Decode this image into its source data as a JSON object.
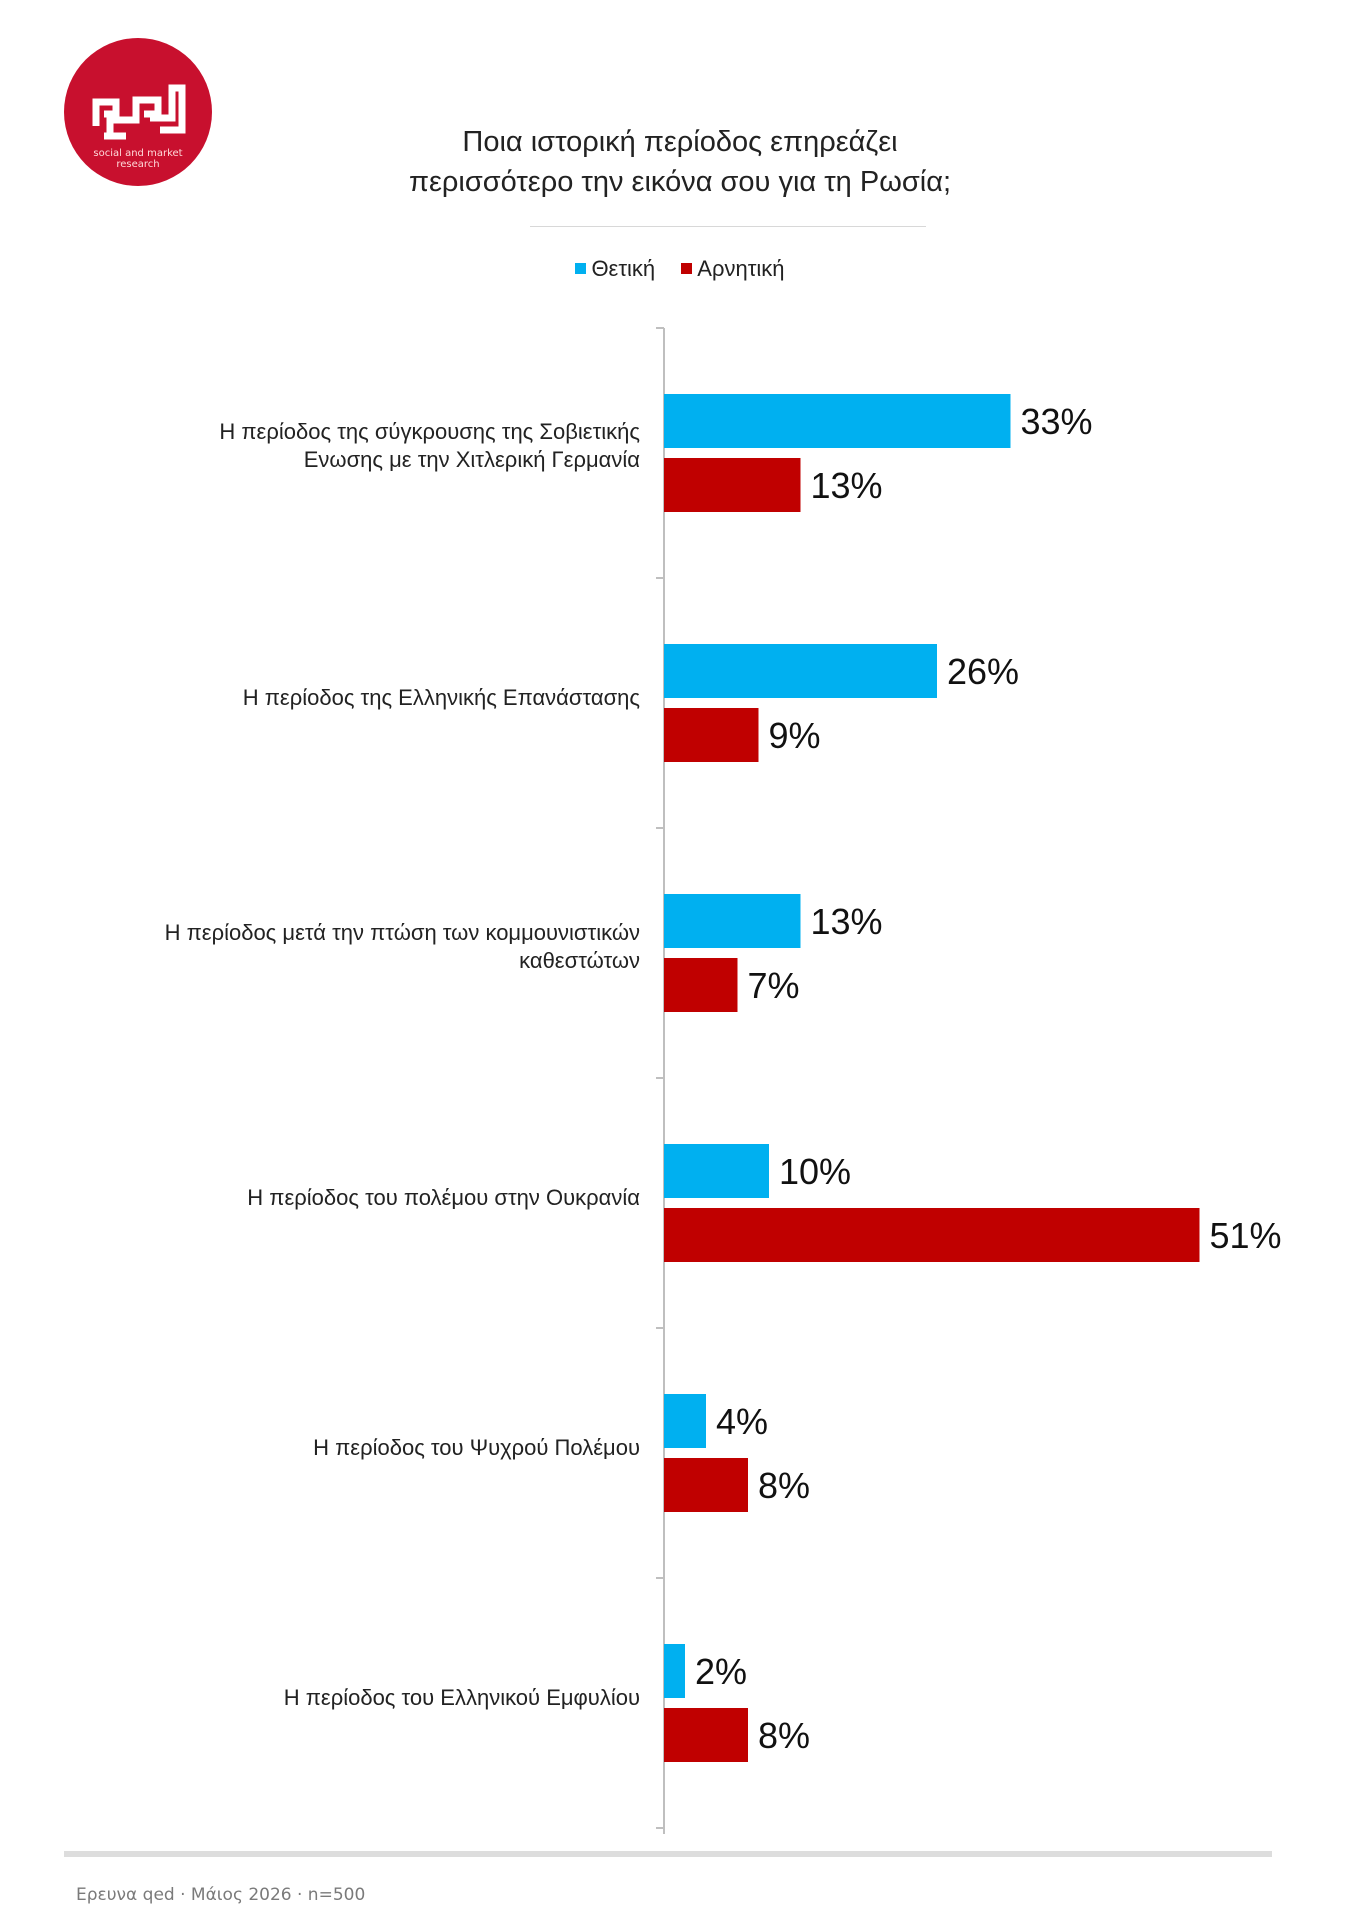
{
  "logo": {
    "line1": "social and market",
    "line2": "research"
  },
  "chart_data": {
    "type": "bar",
    "orientation": "horizontal",
    "title": "Ποια ιστορική περίοδος επηρεάζει περισσότερο την εικόνα σου για τη Ρωσία;",
    "title_lines": [
      "Ποια ιστορική περίοδος επηρεάζει",
      "περισσότερο την εικόνα σου για τη Ρωσία;"
    ],
    "legend_position": "top",
    "grid": false,
    "xlim": [
      0,
      51
    ],
    "categories": [
      [
        "Η περίοδος της σύγκρουσης της Σοβιετικής",
        "Ενωσης με την Χιτλερική Γερμανία"
      ],
      [
        "Η περίοδος της Ελληνικής Επανάστασης"
      ],
      [
        "Η περίοδος μετά την πτώση των κομμουνιστικών",
        "καθεστώτων"
      ],
      [
        "Η περίοδος του πολέμου στην Ουκρανία"
      ],
      [
        "Η περίοδος του Ψυχρού Πολέμου"
      ],
      [
        "Η περίοδος του Ελληνικού Εμφυλίου"
      ]
    ],
    "series": [
      {
        "name": "Θετική",
        "color": "#00b0f0",
        "values": [
          33,
          26,
          13,
          10,
          4,
          2
        ],
        "labels": [
          "33%",
          "26%",
          "13%",
          "10%",
          "4%",
          "2%"
        ]
      },
      {
        "name": "Αρνητική",
        "color": "#c00000",
        "values": [
          13,
          9,
          7,
          51,
          8,
          8
        ],
        "labels": [
          "13%",
          "9%",
          "7%",
          "51%",
          "8%",
          "8%"
        ]
      }
    ]
  },
  "footer": {
    "note": "Ερευνα qed · Μάιος 2026 · n=500"
  }
}
